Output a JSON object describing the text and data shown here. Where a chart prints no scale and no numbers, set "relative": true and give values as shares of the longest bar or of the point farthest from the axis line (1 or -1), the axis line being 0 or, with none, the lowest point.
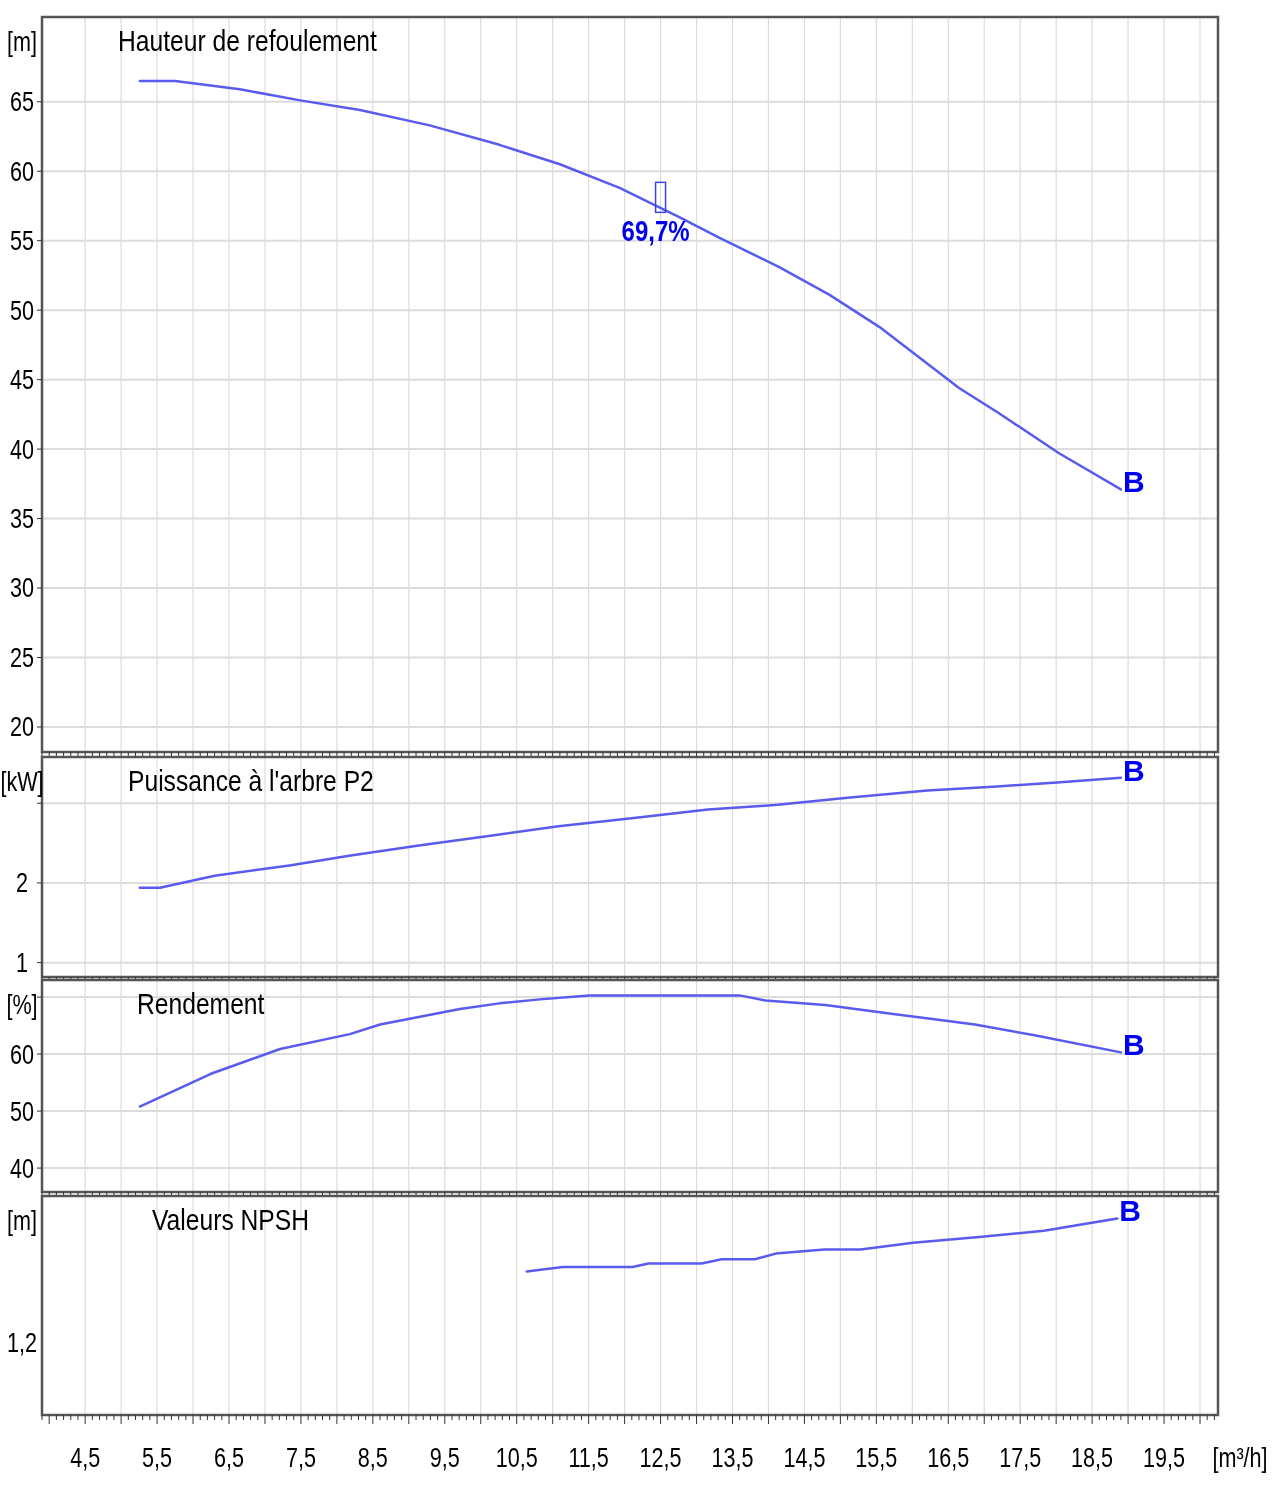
{
  "chart_data": [
    {
      "type": "line",
      "title": "Hauteur de refoulement",
      "ylabel": "[m]",
      "xlim": [
        3.9,
        20.25
      ],
      "ylim": [
        18.2,
        71.1
      ],
      "yticks": [
        20,
        25,
        30,
        35,
        40,
        45,
        50,
        55,
        60,
        65
      ],
      "xticks": [
        {
          "value": 4.5,
          "label": null
        },
        {
          "value": 5,
          "label": null
        },
        {
          "value": 5.5,
          "label": null
        },
        {
          "value": 6,
          "label": null
        },
        {
          "value": 6.5,
          "label": null
        },
        {
          "value": 7,
          "label": null
        },
        {
          "value": 7.5,
          "label": null
        },
        {
          "value": 8,
          "label": null
        },
        {
          "value": 8.5,
          "label": null
        },
        {
          "value": 9,
          "label": null
        },
        {
          "value": 9.5,
          "label": null
        },
        {
          "value": 10,
          "label": null
        },
        {
          "value": 10.5,
          "label": null
        },
        {
          "value": 11,
          "label": null
        },
        {
          "value": 11.5,
          "label": null
        },
        {
          "value": 12,
          "label": null
        },
        {
          "value": 12.5,
          "label": null
        },
        {
          "value": 13,
          "label": null
        },
        {
          "value": 13.5,
          "label": null
        },
        {
          "value": 14,
          "label": null
        },
        {
          "value": 14.5,
          "label": null
        },
        {
          "value": 15,
          "label": null
        },
        {
          "value": 15.5,
          "label": null
        },
        {
          "value": 16,
          "label": null
        },
        {
          "value": 16.5,
          "label": null
        },
        {
          "value": 17,
          "label": null
        },
        {
          "value": 17.5,
          "label": null
        },
        {
          "value": 18,
          "label": null
        },
        {
          "value": 18.5,
          "label": null
        },
        {
          "value": 19,
          "label": null
        },
        {
          "value": 19.5,
          "label": null
        },
        {
          "value": 20,
          "label": null
        }
      ],
      "tick_labels": "y",
      "grid": true,
      "x": [
        5.26,
        5.75,
        6.65,
        7.49,
        8.32,
        9.29,
        10.26,
        11.1,
        11.93,
        12.76,
        13.32,
        14.15,
        14.85,
        15.54,
        16.65,
        17.2,
        18.04,
        18.9
      ],
      "series": [
        {
          "color": "#5a5aee",
          "values": [
            66.5,
            66.5,
            65.9,
            65.1,
            64.4,
            63.3,
            61.9,
            60.5,
            58.8,
            56.7,
            55.2,
            53.1,
            51.1,
            48.8,
            44.4,
            42.6,
            39.7,
            37.1
          ]
        }
      ],
      "annotations": [
        {
          "text": "69,7%",
          "x": 12.5,
          "y": 57.4
        },
        {
          "text": "B",
          "x": 18.9,
          "y": 37.1
        }
      ]
    },
    {
      "type": "line",
      "title": "Puissance à l'arbre P2",
      "ylabel": "[kW]",
      "xlim": [
        3.9,
        20.25
      ],
      "ylim": [
        0.82,
        3.58
      ],
      "yticks": [
        1,
        2,
        {
          "value": 3,
          "label": null
        }
      ],
      "xticks": [
        {
          "value": 4.5,
          "label": null
        },
        {
          "value": 5,
          "label": null
        },
        {
          "value": 5.5,
          "label": null
        },
        {
          "value": 6,
          "label": null
        },
        {
          "value": 6.5,
          "label": null
        },
        {
          "value": 7,
          "label": null
        },
        {
          "value": 7.5,
          "label": null
        },
        {
          "value": 8,
          "label": null
        },
        {
          "value": 8.5,
          "label": null
        },
        {
          "value": 9,
          "label": null
        },
        {
          "value": 9.5,
          "label": null
        },
        {
          "value": 10,
          "label": null
        },
        {
          "value": 10.5,
          "label": null
        },
        {
          "value": 11,
          "label": null
        },
        {
          "value": 11.5,
          "label": null
        },
        {
          "value": 12,
          "label": null
        },
        {
          "value": 12.5,
          "label": null
        },
        {
          "value": 13,
          "label": null
        },
        {
          "value": 13.5,
          "label": null
        },
        {
          "value": 14,
          "label": null
        },
        {
          "value": 14.5,
          "label": null
        },
        {
          "value": 15,
          "label": null
        },
        {
          "value": 15.5,
          "label": null
        },
        {
          "value": 16,
          "label": null
        },
        {
          "value": 16.5,
          "label": null
        },
        {
          "value": 17,
          "label": null
        },
        {
          "value": 17.5,
          "label": null
        },
        {
          "value": 18,
          "label": null
        },
        {
          "value": 18.5,
          "label": null
        },
        {
          "value": 19,
          "label": null
        },
        {
          "value": 19.5,
          "label": null
        },
        {
          "value": 20,
          "label": null
        }
      ],
      "tick_labels": "y",
      "grid": true,
      "x": [
        5.26,
        5.54,
        6.3,
        7.34,
        8.17,
        9.14,
        10.11,
        11.08,
        12.19,
        13.16,
        14.13,
        15.1,
        16.21,
        17.18,
        18.01,
        18.9
      ],
      "series": [
        {
          "color": "#5a5aee",
          "values": [
            1.94,
            1.94,
            2.09,
            2.22,
            2.34,
            2.47,
            2.59,
            2.71,
            2.82,
            2.92,
            2.98,
            3.07,
            3.16,
            3.21,
            3.26,
            3.32
          ]
        }
      ],
      "annotations": [
        {
          "text": "B",
          "x": 18.9,
          "y": 3.32
        }
      ]
    },
    {
      "type": "line",
      "title": "Rendement",
      "ylabel": "[%]",
      "xlim": [
        3.9,
        20.25
      ],
      "ylim": [
        35.8,
        73
      ],
      "yticks": [
        40,
        50,
        60,
        {
          "value": 70,
          "label": null
        }
      ],
      "xticks": [
        {
          "value": 4.5,
          "label": null
        },
        {
          "value": 5,
          "label": null
        },
        {
          "value": 5.5,
          "label": null
        },
        {
          "value": 6,
          "label": null
        },
        {
          "value": 6.5,
          "label": null
        },
        {
          "value": 7,
          "label": null
        },
        {
          "value": 7.5,
          "label": null
        },
        {
          "value": 8,
          "label": null
        },
        {
          "value": 8.5,
          "label": null
        },
        {
          "value": 9,
          "label": null
        },
        {
          "value": 9.5,
          "label": null
        },
        {
          "value": 10,
          "label": null
        },
        {
          "value": 10.5,
          "label": null
        },
        {
          "value": 11,
          "label": null
        },
        {
          "value": 11.5,
          "label": null
        },
        {
          "value": 12,
          "label": null
        },
        {
          "value": 12.5,
          "label": null
        },
        {
          "value": 13,
          "label": null
        },
        {
          "value": 13.5,
          "label": null
        },
        {
          "value": 14,
          "label": null
        },
        {
          "value": 14.5,
          "label": null
        },
        {
          "value": 15,
          "label": null
        },
        {
          "value": 15.5,
          "label": null
        },
        {
          "value": 16,
          "label": null
        },
        {
          "value": 16.5,
          "label": null
        },
        {
          "value": 17,
          "label": null
        },
        {
          "value": 17.5,
          "label": null
        },
        {
          "value": 18,
          "label": null
        },
        {
          "value": 18.5,
          "label": null
        },
        {
          "value": 19,
          "label": null
        },
        {
          "value": 19.5,
          "label": null
        },
        {
          "value": 20,
          "label": null
        }
      ],
      "tick_labels": "y",
      "grid": true,
      "x": [
        5.26,
        6.24,
        7.21,
        8.18,
        8.6,
        9.71,
        10.26,
        10.82,
        11.51,
        13.6,
        13.96,
        14.79,
        15.76,
        16.87,
        17.7,
        18.9
      ],
      "series": [
        {
          "color": "#5a5aee",
          "values": [
            50.8,
            56.5,
            60.9,
            63.5,
            65.2,
            67.9,
            68.9,
            69.6,
            70.3,
            70.3,
            69.4,
            68.6,
            67,
            65.2,
            63.3,
            60.3
          ]
        }
      ],
      "annotations": [
        {
          "text": "B",
          "x": 18.9,
          "y": 60.3
        }
      ]
    },
    {
      "type": "line",
      "title": "Valeurs NPSH",
      "ylabel": "[m]",
      "xlabel": "[m³/h]",
      "relative": true,
      "xlim": [
        3.9,
        20.25
      ],
      "xticks": [
        {
          "value": 4.5,
          "label": "4,5"
        },
        {
          "value": 5,
          "label": null
        },
        {
          "value": 5.5,
          "label": "5,5"
        },
        {
          "value": 6,
          "label": null
        },
        {
          "value": 6.5,
          "label": "6,5"
        },
        {
          "value": 7,
          "label": null
        },
        {
          "value": 7.5,
          "label": "7,5"
        },
        {
          "value": 8,
          "label": null
        },
        {
          "value": 8.5,
          "label": "8,5"
        },
        {
          "value": 9,
          "label": null
        },
        {
          "value": 9.5,
          "label": "9,5"
        },
        {
          "value": 10,
          "label": null
        },
        {
          "value": 10.5,
          "label": "10,5"
        },
        {
          "value": 11,
          "label": null
        },
        {
          "value": 11.5,
          "label": "11,5"
        },
        {
          "value": 12,
          "label": null
        },
        {
          "value": 12.5,
          "label": "12,5"
        },
        {
          "value": 13,
          "label": null
        },
        {
          "value": 13.5,
          "label": "13,5"
        },
        {
          "value": 14,
          "label": null
        },
        {
          "value": 14.5,
          "label": "14,5"
        },
        {
          "value": 15,
          "label": null
        },
        {
          "value": 15.5,
          "label": "15,5"
        },
        {
          "value": 16,
          "label": null
        },
        {
          "value": 16.5,
          "label": "16,5"
        },
        {
          "value": 17,
          "label": null
        },
        {
          "value": 17.5,
          "label": "17,5"
        },
        {
          "value": 18,
          "label": null
        },
        {
          "value": 18.5,
          "label": "18,5"
        },
        {
          "value": 19,
          "label": null
        },
        {
          "value": 19.5,
          "label": "19,5"
        },
        {
          "value": 20,
          "label": null
        }
      ],
      "grid": true,
      "x": [
        10.64,
        11.14,
        12.11,
        12.33,
        13.07,
        13.35,
        13.81,
        14.1,
        14.78,
        15.28,
        16.01,
        16.93,
        17.83,
        18.85
      ],
      "series": [
        {
          "color": "#5a5aee",
          "values": [
            0.73,
            0.753,
            0.753,
            0.771,
            0.771,
            0.792,
            0.792,
            0.821,
            0.842,
            0.842,
            0.876,
            0.906,
            0.937,
            1
          ]
        }
      ],
      "annotations": [
        "1,2",
        {
          "text": "B",
          "x": 18.85,
          "y": 1
        }
      ]
    }
  ]
}
